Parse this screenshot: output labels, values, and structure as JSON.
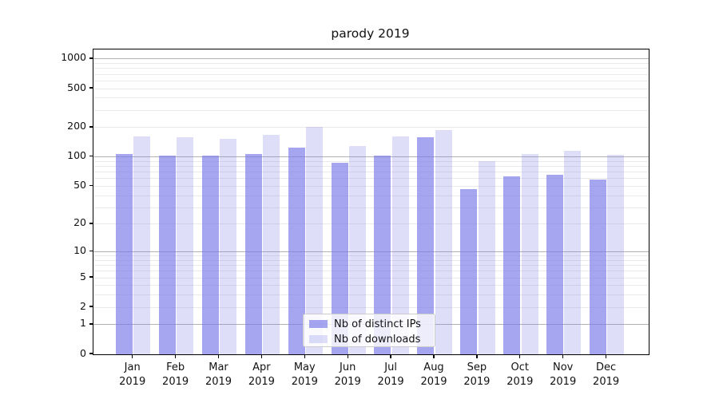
{
  "chart_data": {
    "type": "bar",
    "title": "parody 2019",
    "categories": [
      "Jan",
      "Feb",
      "Mar",
      "Apr",
      "May",
      "Jun",
      "Jul",
      "Aug",
      "Sep",
      "Oct",
      "Nov",
      "Dec"
    ],
    "year_label": "2019",
    "series": [
      {
        "name": "Nb of distinct IPs",
        "color": "rgba(118,118,232,0.66)",
        "values": [
          108,
          103,
          103,
          107,
          125,
          88,
          103,
          159,
          47,
          63,
          66,
          59
        ]
      },
      {
        "name": "Nb of downloads",
        "color": "rgba(118,118,232,0.24)",
        "values": [
          162,
          159,
          154,
          169,
          205,
          130,
          162,
          188,
          90,
          108,
          116,
          105
        ]
      }
    ],
    "yscale": "log10(value+1)",
    "ytick_labels": [
      "0",
      "1",
      "2",
      "5",
      "10",
      "20",
      "50",
      "100",
      "200",
      "500",
      "1000"
    ],
    "ytick_values": [
      0,
      1,
      2,
      5,
      10,
      20,
      50,
      100,
      200,
      500,
      1000
    ],
    "major_grid_values": [
      1,
      10,
      100,
      1000
    ],
    "minor_grid_values": [
      2,
      3,
      4,
      5,
      6,
      7,
      8,
      9,
      20,
      30,
      40,
      50,
      60,
      70,
      80,
      90,
      200,
      300,
      400,
      500,
      600,
      700,
      800,
      900
    ],
    "ylim": [
      0,
      1250
    ],
    "grid": "on",
    "legend": {
      "position": "bottom-center",
      "entries": [
        "Nb of distinct IPs",
        "Nb of downloads"
      ]
    },
    "colors": {
      "bar_distinct_ips": "rgba(118,118,232,0.66)",
      "bar_downloads": "rgba(118,118,232,0.24)",
      "major_grid": "#b3b3b3",
      "minor_grid": "#eaeaea",
      "spine": "#000000",
      "text": "#111111",
      "background": "#ffffff"
    }
  }
}
